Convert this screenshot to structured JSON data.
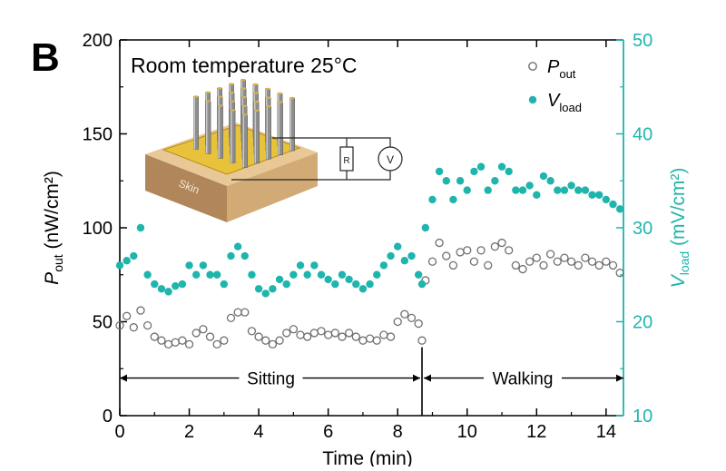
{
  "chart_data": {
    "type": "scatter",
    "panel_label": "B",
    "title": "Room temperature 25°C",
    "xlabel": "Time (min)",
    "ylabel_left": {
      "main": "P",
      "sub": "out",
      "unit": " (nW/cm²)"
    },
    "ylabel_right": {
      "main": "V",
      "sub": "load",
      "unit": " (mV/cm²)"
    },
    "xlim": [
      0,
      14.5
    ],
    "ylim_left": [
      0,
      200
    ],
    "ylim_right": [
      10,
      50
    ],
    "xticks": [
      "0",
      "2",
      "4",
      "6",
      "8",
      "10",
      "12",
      "14"
    ],
    "yticks_left": [
      "0",
      "50",
      "100",
      "150",
      "200"
    ],
    "yticks_right": [
      "10",
      "20",
      "30",
      "40",
      "50"
    ],
    "grid": false,
    "legend": {
      "placement": "top-right",
      "p_out": {
        "main": "P",
        "sub": "out"
      },
      "v_load": {
        "main": "V",
        "sub": "load"
      }
    },
    "colors": {
      "p_out": "#707070",
      "v_load": "#1fb5ad",
      "axis": "#000000",
      "right_axis": "#1fb5ad"
    },
    "annotations": {
      "sitting": {
        "label": "Sitting",
        "x_range": [
          0,
          8.7
        ],
        "y_left": 20
      },
      "walking": {
        "label": "Walking",
        "x_range": [
          8.7,
          14.5
        ],
        "y_left": 20
      },
      "divider_x": 8.7
    },
    "inset": {
      "label_skin": "Skin",
      "label_resistor": "R",
      "label_voltmeter": "V"
    },
    "series": [
      {
        "name": "P_out",
        "axis": "left",
        "marker": "open-circle",
        "points": [
          [
            0.0,
            48
          ],
          [
            0.2,
            53
          ],
          [
            0.4,
            47
          ],
          [
            0.6,
            56
          ],
          [
            0.8,
            48
          ],
          [
            1.0,
            42
          ],
          [
            1.2,
            40
          ],
          [
            1.4,
            38
          ],
          [
            1.6,
            39
          ],
          [
            1.8,
            40
          ],
          [
            2.0,
            38
          ],
          [
            2.2,
            44
          ],
          [
            2.4,
            46
          ],
          [
            2.6,
            42
          ],
          [
            2.8,
            38
          ],
          [
            3.0,
            40
          ],
          [
            3.2,
            52
          ],
          [
            3.4,
            55
          ],
          [
            3.6,
            55
          ],
          [
            3.8,
            45
          ],
          [
            4.0,
            42
          ],
          [
            4.2,
            40
          ],
          [
            4.4,
            38
          ],
          [
            4.6,
            40
          ],
          [
            4.8,
            44
          ],
          [
            5.0,
            46
          ],
          [
            5.2,
            43
          ],
          [
            5.4,
            42
          ],
          [
            5.6,
            44
          ],
          [
            5.8,
            45
          ],
          [
            6.0,
            43
          ],
          [
            6.2,
            44
          ],
          [
            6.4,
            42
          ],
          [
            6.6,
            44
          ],
          [
            6.8,
            42
          ],
          [
            7.0,
            40
          ],
          [
            7.2,
            41
          ],
          [
            7.4,
            40
          ],
          [
            7.6,
            43
          ],
          [
            7.8,
            42
          ],
          [
            8.0,
            50
          ],
          [
            8.2,
            54
          ],
          [
            8.4,
            52
          ],
          [
            8.6,
            49
          ],
          [
            8.7,
            40
          ],
          [
            8.8,
            72
          ],
          [
            9.0,
            82
          ],
          [
            9.2,
            92
          ],
          [
            9.4,
            85
          ],
          [
            9.6,
            80
          ],
          [
            9.8,
            87
          ],
          [
            10.0,
            88
          ],
          [
            10.2,
            82
          ],
          [
            10.4,
            88
          ],
          [
            10.6,
            80
          ],
          [
            10.8,
            90
          ],
          [
            11.0,
            92
          ],
          [
            11.2,
            88
          ],
          [
            11.4,
            80
          ],
          [
            11.6,
            78
          ],
          [
            11.8,
            82
          ],
          [
            12.0,
            84
          ],
          [
            12.2,
            80
          ],
          [
            12.4,
            86
          ],
          [
            12.6,
            82
          ],
          [
            12.8,
            84
          ],
          [
            13.0,
            82
          ],
          [
            13.2,
            80
          ],
          [
            13.4,
            84
          ],
          [
            13.6,
            82
          ],
          [
            13.8,
            80
          ],
          [
            14.0,
            82
          ],
          [
            14.2,
            80
          ],
          [
            14.4,
            76
          ]
        ]
      },
      {
        "name": "V_load",
        "axis": "right",
        "marker": "filled-circle",
        "points": [
          [
            0.0,
            26
          ],
          [
            0.2,
            26.5
          ],
          [
            0.4,
            27
          ],
          [
            0.6,
            30
          ],
          [
            0.8,
            25
          ],
          [
            1.0,
            24
          ],
          [
            1.2,
            23.5
          ],
          [
            1.4,
            23.2
          ],
          [
            1.6,
            23.8
          ],
          [
            1.8,
            24
          ],
          [
            2.0,
            26
          ],
          [
            2.2,
            25
          ],
          [
            2.4,
            26
          ],
          [
            2.6,
            25
          ],
          [
            2.8,
            25
          ],
          [
            3.0,
            24
          ],
          [
            3.2,
            27
          ],
          [
            3.4,
            28
          ],
          [
            3.6,
            27
          ],
          [
            3.8,
            25
          ],
          [
            4.0,
            23.5
          ],
          [
            4.2,
            23
          ],
          [
            4.4,
            23.5
          ],
          [
            4.6,
            24.5
          ],
          [
            4.8,
            24
          ],
          [
            5.0,
            25
          ],
          [
            5.2,
            26
          ],
          [
            5.4,
            25
          ],
          [
            5.6,
            26
          ],
          [
            5.8,
            25
          ],
          [
            6.0,
            24.5
          ],
          [
            6.2,
            24
          ],
          [
            6.4,
            25
          ],
          [
            6.6,
            24.5
          ],
          [
            6.8,
            24
          ],
          [
            7.0,
            23.5
          ],
          [
            7.2,
            24
          ],
          [
            7.4,
            25
          ],
          [
            7.6,
            26
          ],
          [
            7.8,
            27
          ],
          [
            8.0,
            28
          ],
          [
            8.2,
            26.5
          ],
          [
            8.4,
            27
          ],
          [
            8.6,
            25
          ],
          [
            8.7,
            24
          ],
          [
            8.8,
            30
          ],
          [
            9.0,
            33
          ],
          [
            9.2,
            36
          ],
          [
            9.4,
            35
          ],
          [
            9.6,
            33
          ],
          [
            9.8,
            35
          ],
          [
            10.0,
            34
          ],
          [
            10.2,
            36
          ],
          [
            10.4,
            36.5
          ],
          [
            10.6,
            34
          ],
          [
            10.8,
            35
          ],
          [
            11.0,
            36.5
          ],
          [
            11.2,
            36
          ],
          [
            11.4,
            34
          ],
          [
            11.6,
            34
          ],
          [
            11.8,
            34.5
          ],
          [
            12.0,
            33.5
          ],
          [
            12.2,
            35.5
          ],
          [
            12.4,
            35
          ],
          [
            12.6,
            34
          ],
          [
            12.8,
            34
          ],
          [
            13.0,
            34.5
          ],
          [
            13.2,
            34
          ],
          [
            13.4,
            34
          ],
          [
            13.6,
            33.5
          ],
          [
            13.8,
            33.5
          ],
          [
            14.0,
            33
          ],
          [
            14.2,
            32.5
          ],
          [
            14.4,
            32
          ]
        ]
      }
    ]
  }
}
